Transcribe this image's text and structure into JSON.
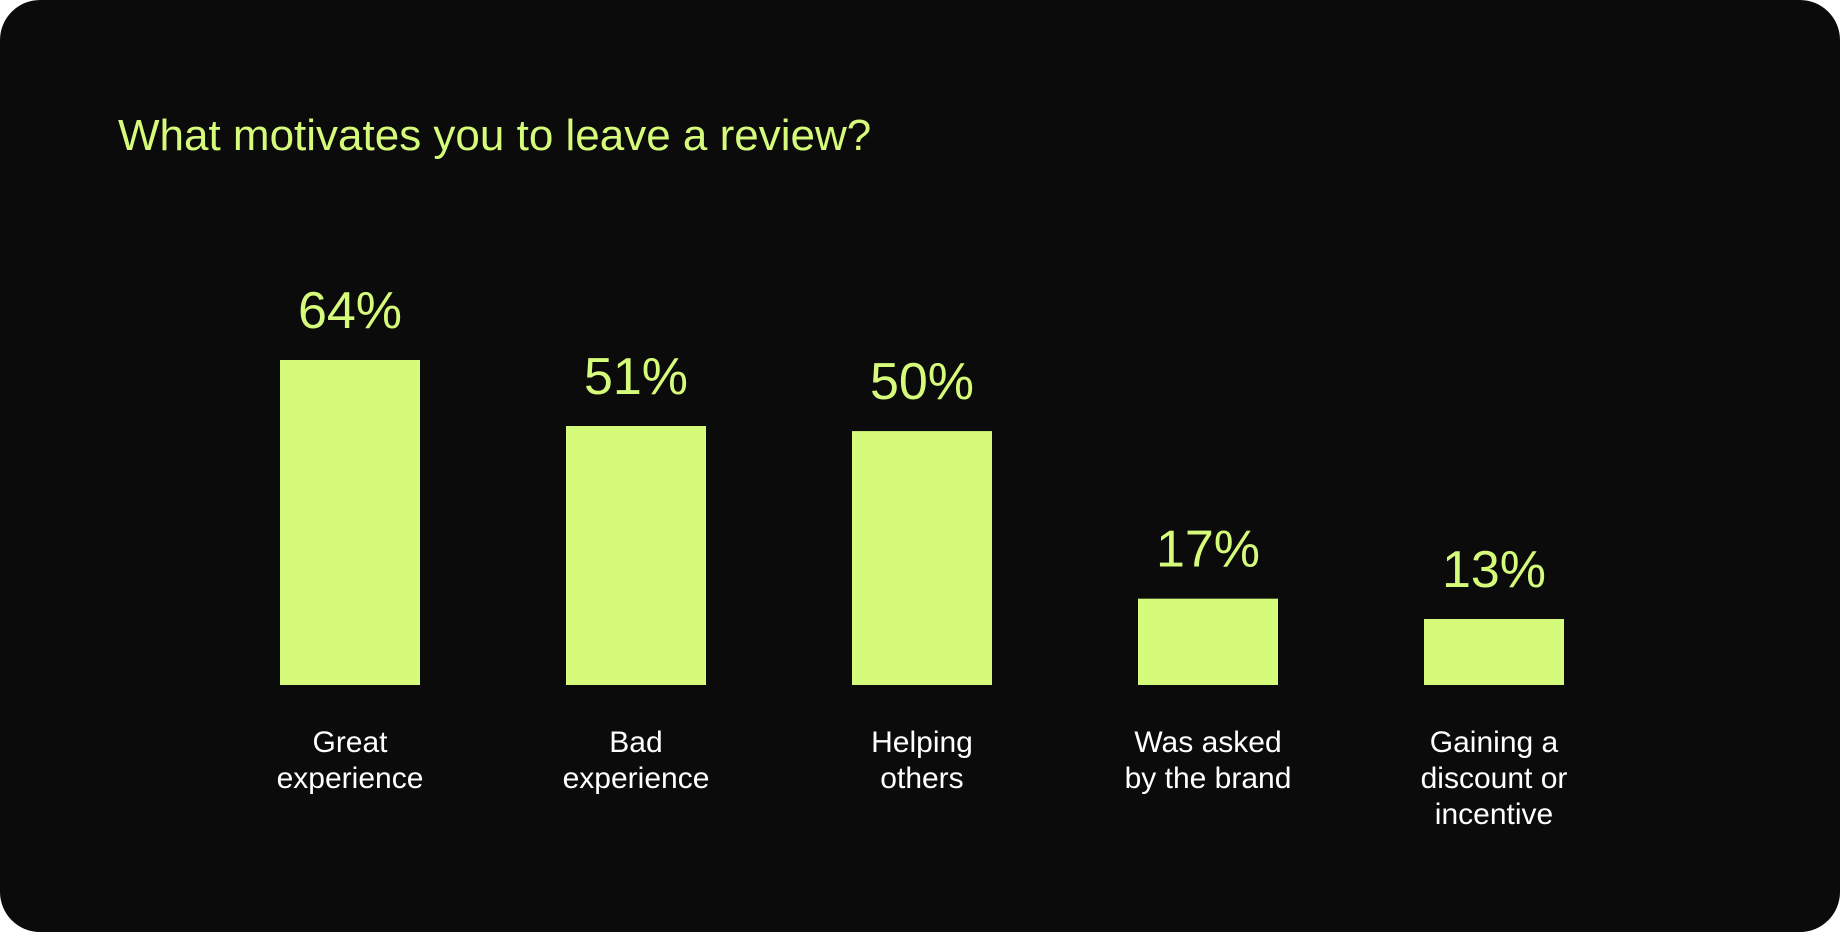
{
  "colors": {
    "background": "#0b0b0b",
    "accent": "#d6fb7b",
    "label_text": "#ffffff"
  },
  "chart_data": {
    "type": "bar",
    "title": "What motivates you to leave a review?",
    "categories": [
      "Great experience",
      "Bad experience",
      "Helping others",
      "Was asked by the brand",
      "Gaining a discount or incentive"
    ],
    "category_label_lines": [
      [
        "Great",
        "experience"
      ],
      [
        "Bad",
        "experience"
      ],
      [
        "Helping",
        "others"
      ],
      [
        "Was asked",
        "by the brand"
      ],
      [
        "Gaining a",
        "discount or",
        "incentive"
      ]
    ],
    "values": [
      64,
      51,
      50,
      17,
      13
    ],
    "value_labels": [
      "64%",
      "51%",
      "50%",
      "17%",
      "13%"
    ],
    "ylim": [
      0,
      64
    ],
    "grid": false,
    "legend": "none"
  }
}
